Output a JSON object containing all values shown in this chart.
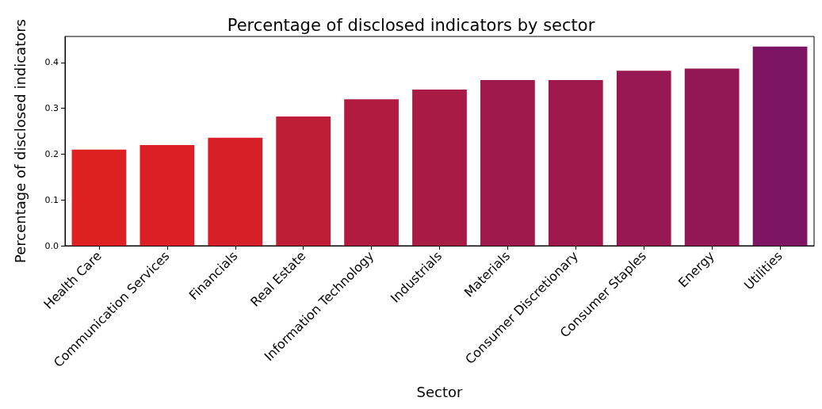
{
  "chart_data": {
    "type": "bar",
    "title": "Percentage of disclosed indicators by sector",
    "xlabel": "Sector",
    "ylabel": "Percentage of disclosed indicators",
    "categories": [
      "Health Care",
      "Communication Services",
      "Financials",
      "Real Estate",
      "Information Technology",
      "Industrials",
      "Materials",
      "Consumer Discretionary",
      "Consumer Staples",
      "Energy",
      "Utilities"
    ],
    "values": [
      0.21,
      0.22,
      0.236,
      0.282,
      0.32,
      0.341,
      0.362,
      0.362,
      0.382,
      0.387,
      0.435
    ],
    "colors": [
      "#dd2022",
      "#dc1f24",
      "#d61f26",
      "#be1d36",
      "#b21b40",
      "#a71b45",
      "#9e184b",
      "#9e184c",
      "#971853",
      "#931655",
      "#7d1363"
    ],
    "ylim": [
      0,
      0.457
    ],
    "yticks": [
      {
        "value": 0,
        "label": "0.0"
      },
      {
        "value": 0.1,
        "label": "0.1"
      },
      {
        "value": 0.2,
        "label": "0.2"
      },
      {
        "value": 0.3,
        "label": "0.3"
      },
      {
        "value": 0.4,
        "label": "0.4"
      }
    ],
    "grid": false
  }
}
